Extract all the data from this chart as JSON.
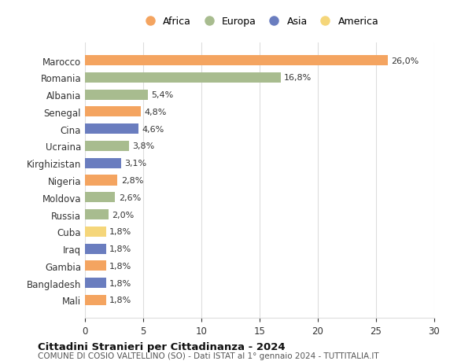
{
  "countries": [
    "Marocco",
    "Romania",
    "Albania",
    "Senegal",
    "Cina",
    "Ucraina",
    "Kirghizistan",
    "Nigeria",
    "Moldova",
    "Russia",
    "Cuba",
    "Iraq",
    "Gambia",
    "Bangladesh",
    "Mali"
  ],
  "values": [
    26.0,
    16.8,
    5.4,
    4.8,
    4.6,
    3.8,
    3.1,
    2.8,
    2.6,
    2.0,
    1.8,
    1.8,
    1.8,
    1.8,
    1.8
  ],
  "labels": [
    "26,0%",
    "16,8%",
    "5,4%",
    "4,8%",
    "4,6%",
    "3,8%",
    "3,1%",
    "2,8%",
    "2,6%",
    "2,0%",
    "1,8%",
    "1,8%",
    "1,8%",
    "1,8%",
    "1,8%"
  ],
  "continents": [
    "Africa",
    "Europa",
    "Europa",
    "Africa",
    "Asia",
    "Europa",
    "Asia",
    "Africa",
    "Europa",
    "Europa",
    "America",
    "Asia",
    "Africa",
    "Asia",
    "Africa"
  ],
  "continent_colors": {
    "Africa": "#F4A460",
    "Europa": "#A8BC8F",
    "Asia": "#6A7DBF",
    "America": "#F5D67A"
  },
  "legend_order": [
    "Africa",
    "Europa",
    "Asia",
    "America"
  ],
  "title": "Cittadini Stranieri per Cittadinanza - 2024",
  "subtitle": "COMUNE DI COSIO VALTELLINO (SO) - Dati ISTAT al 1° gennaio 2024 - TUTTITALIA.IT",
  "xlim": [
    0,
    30
  ],
  "xticks": [
    0,
    5,
    10,
    15,
    20,
    25,
    30
  ],
  "bg_color": "#FFFFFF",
  "grid_color": "#DDDDDD"
}
